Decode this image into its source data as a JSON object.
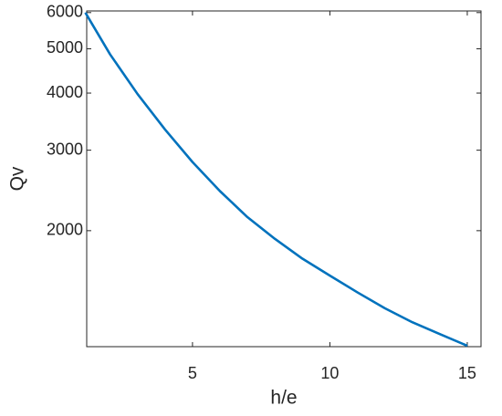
{
  "chart_data": {
    "type": "line",
    "x_label": "h/e",
    "y_label": "Qv",
    "x": [
      1.1,
      2,
      3,
      4,
      5,
      6,
      7,
      8,
      9,
      10,
      11,
      12,
      13,
      14,
      15
    ],
    "series": [
      {
        "color": "#0072bd",
        "values": [
          6000,
          4862,
          3981,
          3330,
          2826,
          2441,
          2141,
          1919,
          1737,
          1595,
          1466,
          1353,
          1261,
          1188,
          1120
        ]
      }
    ],
    "xlim": [
      1.15,
      15.5
    ],
    "xticks": [
      5,
      10,
      15
    ],
    "ylim": [
      1115,
      6050
    ],
    "yticks": [
      2000,
      3000,
      4000,
      5000,
      6000
    ],
    "ylog": true,
    "grid": false
  }
}
